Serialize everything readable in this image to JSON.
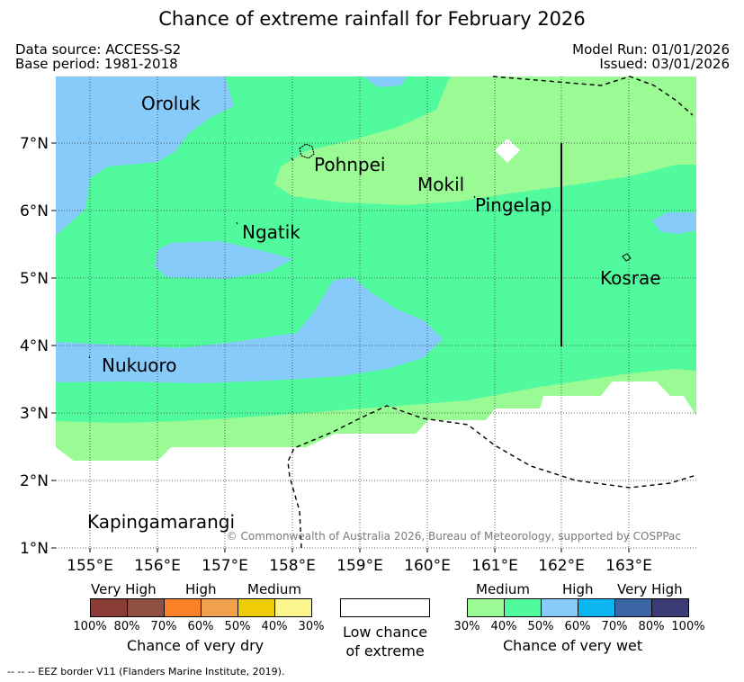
{
  "title": "Chance of extreme rainfall for February 2026",
  "header": {
    "data_source": "Data source: ACCESS-S2",
    "base_period": "Base period: 1981-2018",
    "model_run": "Model Run: 01/01/2026",
    "issued": "Issued: 03/01/2026"
  },
  "map": {
    "lon_ticks": [
      "155°E",
      "156°E",
      "157°E",
      "158°E",
      "159°E",
      "160°E",
      "161°E",
      "162°E",
      "163°E"
    ],
    "lat_ticks": [
      "7°N",
      "6°N",
      "5°N",
      "4°N",
      "3°N",
      "2°N",
      "1°N"
    ],
    "places": {
      "oroluk": "Oroluk",
      "pohnpei": "Pohnpei",
      "mokil": "Mokil",
      "pingelap": "Pingelap",
      "ngatik": "Ngatik",
      "kosrae": "Kosrae",
      "nukuoro": "Nukuoro",
      "kapingamarangi": "Kapingamarangi"
    },
    "copyright": "© Commonwealth of Australia 2026, Bureau of Meteorology, supported by COSPPac",
    "colors": {
      "wet_30": "#9afa94",
      "wet_40": "#52fa9e",
      "wet_60": "#87cbfb",
      "wet_70": "#0bb5ef",
      "wet_80": "#3a66a6",
      "wet_100": "#3b3b76"
    }
  },
  "legend": {
    "dry": {
      "labels": [
        "Very High",
        "High",
        "Medium"
      ],
      "percents": [
        "100%",
        "80%",
        "70%",
        "60%",
        "50%",
        "40%",
        "30%"
      ],
      "title": "Chance of very dry",
      "colors": [
        "#8b3c36",
        "#8e5040",
        "#fb8129",
        "#f1a04b",
        "#efcd06",
        "#fbf68e"
      ]
    },
    "low": {
      "line1": "Low chance",
      "line2": "of extreme"
    },
    "wet": {
      "labels": [
        "Medium",
        "High",
        "Very High"
      ],
      "percents": [
        "30%",
        "40%",
        "50%",
        "60%",
        "70%",
        "80%",
        "100%"
      ],
      "title": "Chance of very wet",
      "colors": [
        "#9afa94",
        "#52fa9e",
        "#87cbfb",
        "#0bb5ef",
        "#3a66a6",
        "#3b3b76"
      ]
    }
  },
  "footer": "--  --  -- EEZ border V11 (Flanders Marine Institute, 2019)."
}
